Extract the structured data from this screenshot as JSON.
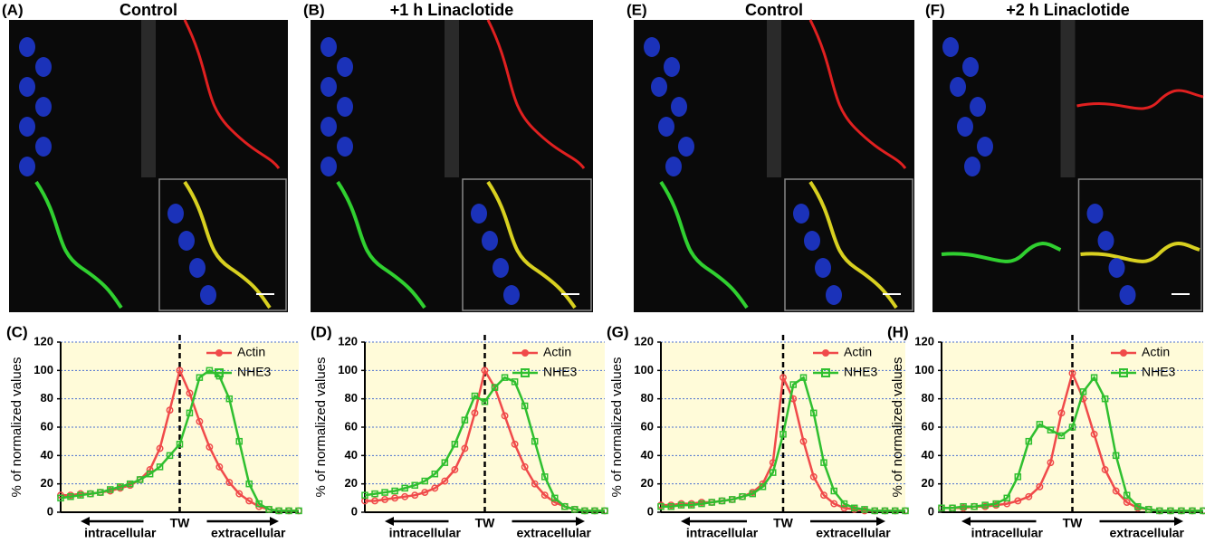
{
  "panels": [
    {
      "label": "(A)",
      "title": "Control"
    },
    {
      "label": "(B)",
      "title": "+1 h Linaclotide"
    },
    {
      "label": "(E)",
      "title": "Control"
    },
    {
      "label": "(F)",
      "title": "+2 h Linaclotide"
    }
  ],
  "chart_data": [
    {
      "type": "line",
      "panel_label": "(C)",
      "ylabel": "% of normalized values",
      "categories": [
        null,
        null,
        null,
        null,
        null,
        null,
        null,
        null,
        null,
        null,
        null,
        null,
        null,
        null,
        null,
        null,
        null,
        null,
        null,
        null,
        null,
        null,
        null,
        null,
        null
      ],
      "series": [
        {
          "name": "Actin",
          "color": "#f04a4a",
          "values": [
            12,
            12,
            13,
            13,
            14,
            15,
            17,
            19,
            23,
            30,
            45,
            72,
            100,
            84,
            64,
            46,
            32,
            21,
            13,
            8,
            4,
            2,
            1,
            1,
            1
          ]
        },
        {
          "name": "NHE3",
          "color": "#2fbf2f",
          "values": [
            10,
            11,
            12,
            13,
            14,
            16,
            18,
            20,
            23,
            27,
            32,
            40,
            48,
            70,
            95,
            100,
            96,
            80,
            50,
            20,
            6,
            2,
            1,
            1,
            1
          ]
        }
      ],
      "ylim": [
        0,
        120
      ],
      "yticks": [
        0,
        20,
        40,
        60,
        80,
        100,
        120
      ],
      "grid": true,
      "annotations": [
        "intracellular",
        "TW",
        "extracellular"
      ]
    },
    {
      "type": "line",
      "panel_label": "(D)",
      "ylabel": "% of normalized values",
      "categories": [
        null,
        null,
        null,
        null,
        null,
        null,
        null,
        null,
        null,
        null,
        null,
        null,
        null,
        null,
        null,
        null,
        null,
        null,
        null,
        null,
        null,
        null,
        null,
        null,
        null
      ],
      "series": [
        {
          "name": "Actin",
          "color": "#f04a4a",
          "values": [
            8,
            8,
            9,
            10,
            11,
            12,
            14,
            17,
            22,
            30,
            45,
            70,
            100,
            88,
            68,
            48,
            32,
            20,
            12,
            7,
            4,
            2,
            1,
            1,
            1
          ]
        },
        {
          "name": "NHE3",
          "color": "#2fbf2f",
          "values": [
            12,
            13,
            14,
            15,
            17,
            19,
            22,
            27,
            35,
            48,
            65,
            82,
            78,
            88,
            95,
            92,
            75,
            50,
            25,
            10,
            4,
            2,
            1,
            1,
            1
          ]
        }
      ],
      "ylim": [
        0,
        120
      ],
      "yticks": [
        0,
        20,
        40,
        60,
        80,
        100,
        120
      ],
      "grid": true,
      "annotations": [
        "intracellular",
        "TW",
        "extracellular"
      ]
    },
    {
      "type": "line",
      "panel_label": "(G)",
      "ylabel": "% of normalized values",
      "categories": [
        null,
        null,
        null,
        null,
        null,
        null,
        null,
        null,
        null,
        null,
        null,
        null,
        null,
        null,
        null,
        null,
        null,
        null,
        null,
        null,
        null,
        null,
        null,
        null,
        null
      ],
      "series": [
        {
          "name": "Actin",
          "color": "#f04a4a",
          "values": [
            5,
            5,
            6,
            6,
            7,
            7,
            8,
            9,
            11,
            14,
            20,
            35,
            95,
            80,
            50,
            25,
            12,
            6,
            3,
            2,
            1,
            1,
            1,
            1,
            1
          ]
        },
        {
          "name": "NHE3",
          "color": "#2fbf2f",
          "values": [
            4,
            4,
            5,
            5,
            6,
            7,
            8,
            9,
            11,
            13,
            18,
            28,
            55,
            90,
            95,
            70,
            35,
            15,
            6,
            3,
            2,
            1,
            1,
            1,
            1
          ]
        }
      ],
      "ylim": [
        0,
        120
      ],
      "yticks": [
        0,
        20,
        40,
        60,
        80,
        100,
        120
      ],
      "grid": true,
      "annotations": [
        "intracellular",
        "TW",
        "extracellular"
      ]
    },
    {
      "type": "line",
      "panel_label": "(H)",
      "ylabel": "% of normalized values",
      "categories": [
        null,
        null,
        null,
        null,
        null,
        null,
        null,
        null,
        null,
        null,
        null,
        null,
        null,
        null,
        null,
        null,
        null,
        null,
        null,
        null,
        null,
        null,
        null,
        null,
        null
      ],
      "series": [
        {
          "name": "Actin",
          "color": "#f04a4a",
          "values": [
            3,
            3,
            3,
            4,
            4,
            5,
            6,
            8,
            11,
            18,
            35,
            70,
            98,
            80,
            55,
            30,
            15,
            7,
            3,
            2,
            1,
            1,
            1,
            1,
            1
          ]
        },
        {
          "name": "NHE3",
          "color": "#2fbf2f",
          "values": [
            3,
            3,
            4,
            4,
            5,
            6,
            10,
            25,
            50,
            62,
            58,
            54,
            60,
            85,
            95,
            80,
            40,
            12,
            4,
            2,
            1,
            1,
            1,
            1,
            1
          ]
        }
      ],
      "ylim": [
        0,
        120
      ],
      "yticks": [
        0,
        20,
        40,
        60,
        80,
        100,
        120
      ],
      "grid": true,
      "annotations": [
        "intracellular",
        "TW",
        "extracellular"
      ]
    }
  ]
}
